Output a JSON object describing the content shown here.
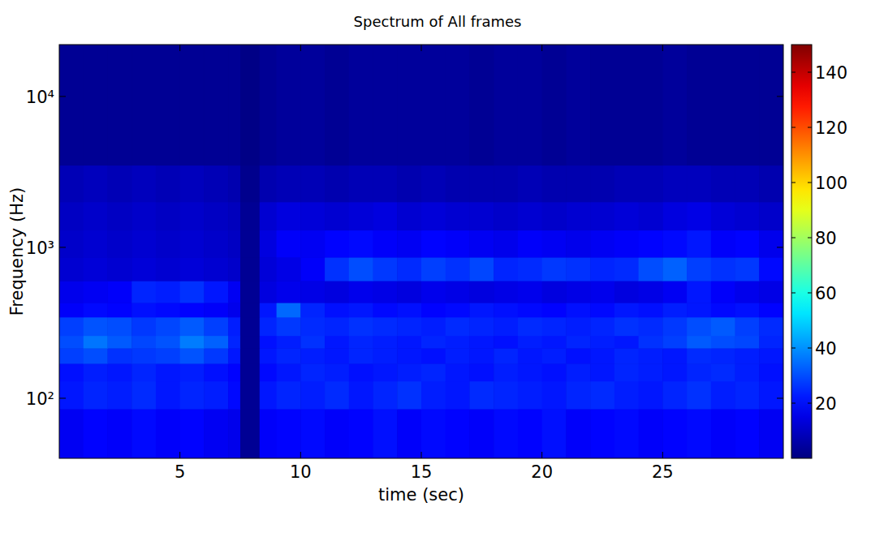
{
  "chart_data": {
    "type": "heatmap",
    "title": "Spectrum of All frames",
    "x_label": "time (sec)",
    "y_label": "Frequency (Hz)",
    "log": "y",
    "xlim": [
      0,
      30
    ],
    "ylim": [
      40,
      22050
    ],
    "xticks": [
      5,
      10,
      15,
      20,
      25
    ],
    "yticks": [
      {
        "value": 100,
        "label": "10²"
      },
      {
        "value": 1000,
        "label": "10³"
      },
      {
        "value": 10000,
        "label": "10⁴"
      }
    ],
    "x_edges": [
      0,
      1,
      2,
      3,
      4,
      5,
      6,
      7,
      7.5,
      8.3,
      9,
      10,
      11,
      12,
      13,
      14,
      15,
      16,
      17,
      18,
      19,
      20,
      21,
      22,
      23,
      24,
      25,
      26,
      27,
      28,
      29,
      30
    ],
    "y_edges": [
      40,
      85,
      130,
      170,
      215,
      260,
      345,
      430,
      600,
      860,
      1300,
      2000,
      3500,
      22050
    ],
    "cells": [
      [
        17,
        19,
        18,
        20,
        18,
        19,
        17,
        16,
        3,
        18,
        19,
        20,
        18,
        19,
        21,
        18,
        20,
        19,
        18,
        20,
        19,
        21,
        18,
        19,
        20,
        18,
        19,
        20,
        18,
        19,
        17
      ],
      [
        22,
        24,
        23,
        25,
        22,
        24,
        23,
        20,
        3,
        22,
        24,
        23,
        25,
        22,
        24,
        26,
        23,
        22,
        25,
        24,
        23,
        22,
        24,
        25,
        23,
        22,
        24,
        26,
        23,
        24,
        22
      ],
      [
        21,
        23,
        22,
        24,
        22,
        23,
        21,
        19,
        3,
        20,
        22,
        24,
        23,
        21,
        22,
        23,
        24,
        22,
        21,
        23,
        22,
        21,
        23,
        22,
        24,
        23,
        22,
        24,
        25,
        23,
        21
      ],
      [
        28,
        30,
        26,
        27,
        28,
        31,
        27,
        22,
        3,
        22,
        24,
        23,
        22,
        24,
        23,
        22,
        21,
        23,
        22,
        24,
        22,
        23,
        21,
        22,
        24,
        23,
        22,
        25,
        24,
        23,
        22
      ],
      [
        30,
        36,
        32,
        29,
        31,
        37,
        33,
        24,
        3,
        21,
        23,
        26,
        22,
        24,
        23,
        22,
        24,
        23,
        22,
        21,
        23,
        22,
        24,
        23,
        22,
        26,
        28,
        32,
        30,
        29,
        24
      ],
      [
        28,
        31,
        30,
        27,
        29,
        32,
        28,
        23,
        3,
        24,
        27,
        25,
        24,
        26,
        25,
        24,
        23,
        25,
        24,
        23,
        25,
        24,
        23,
        24,
        26,
        25,
        27,
        30,
        32,
        28,
        25
      ],
      [
        18,
        20,
        19,
        21,
        20,
        19,
        18,
        16,
        3,
        22,
        34,
        24,
        21,
        22,
        20,
        21,
        19,
        20,
        22,
        21,
        20,
        19,
        21,
        20,
        22,
        21,
        23,
        22,
        20,
        21,
        19
      ],
      [
        16,
        17,
        18,
        24,
        23,
        26,
        22,
        17,
        3,
        14,
        16,
        15,
        14,
        16,
        15,
        14,
        16,
        15,
        14,
        15,
        16,
        14,
        15,
        16,
        14,
        15,
        17,
        22,
        18,
        16,
        15
      ],
      [
        12,
        13,
        12,
        13,
        12,
        13,
        12,
        11,
        3,
        13,
        15,
        18,
        26,
        30,
        27,
        25,
        28,
        26,
        29,
        24,
        25,
        27,
        26,
        24,
        25,
        30,
        33,
        28,
        26,
        27,
        20
      ],
      [
        11,
        12,
        11,
        12,
        11,
        12,
        11,
        10,
        3,
        14,
        18,
        17,
        19,
        20,
        18,
        17,
        19,
        18,
        17,
        16,
        18,
        17,
        16,
        17,
        18,
        19,
        20,
        22,
        18,
        19,
        16
      ],
      [
        10,
        11,
        10,
        11,
        10,
        11,
        10,
        9,
        3,
        12,
        14,
        13,
        12,
        13,
        14,
        12,
        13,
        12,
        12,
        11,
        12,
        11,
        12,
        12,
        13,
        12,
        14,
        15,
        13,
        12,
        11
      ],
      [
        8,
        9,
        8,
        9,
        8,
        9,
        8,
        7,
        2,
        7,
        8,
        8,
        7,
        8,
        8,
        7,
        8,
        7,
        7,
        7,
        8,
        7,
        7,
        7,
        8,
        8,
        9,
        9,
        8,
        8,
        7
      ],
      [
        3,
        3,
        3,
        3,
        3,
        3,
        3,
        3,
        1,
        3,
        4,
        4,
        3,
        4,
        4,
        4,
        4,
        4,
        3,
        4,
        4,
        3,
        4,
        3,
        3,
        3,
        4,
        3,
        3,
        3,
        3
      ]
    ],
    "colorbar_lim": [
      0,
      150
    ],
    "colorbar_ticks": [
      20,
      40,
      60,
      80,
      100,
      120,
      140
    ]
  }
}
